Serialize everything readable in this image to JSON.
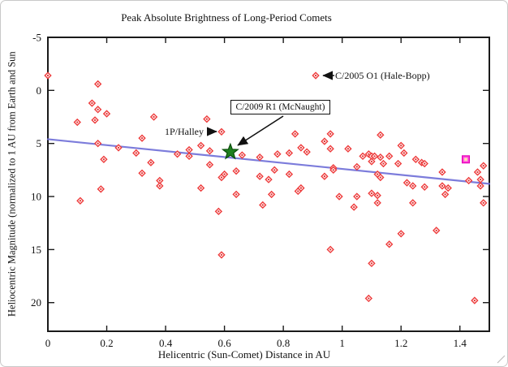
{
  "chart_data": {
    "type": "scatter",
    "title": "Peak Absolute Brightness of Long-Period Comets",
    "xlabel": "Helicentric (Sun-Comet) Distance in AU",
    "ylabel": "Heliocentric Magnitude (normalized to 1 AU from Earth and Sun",
    "xlim": [
      0,
      1.5
    ],
    "ylim": [
      -5,
      22.7
    ],
    "y_axis_note": "magnitude axis increases downward (brighter at top)",
    "grid": false,
    "xtick_values": [
      0,
      0.2,
      0.4,
      0.6,
      0.8,
      1,
      1.2,
      1.4
    ],
    "xtick_labels": [
      "0",
      "0.2",
      "0.4",
      "0.6",
      "0.8",
      "1",
      "1.2",
      "1.4"
    ],
    "ytick_values": [
      -5,
      0,
      5,
      10,
      15,
      20
    ],
    "ytick_labels": [
      "-5",
      "0",
      "5",
      "10",
      "15",
      "20"
    ],
    "series": [
      {
        "name": "Long-period comets",
        "marker": "open-diamond",
        "color": "#ee3b3b",
        "points": [
          [
            0.0,
            -1.4
          ],
          [
            0.17,
            -0.6
          ],
          [
            0.15,
            1.2
          ],
          [
            0.17,
            1.8
          ],
          [
            0.2,
            2.2
          ],
          [
            0.16,
            2.8
          ],
          [
            0.1,
            3.0
          ],
          [
            0.36,
            2.5
          ],
          [
            0.32,
            4.5
          ],
          [
            0.17,
            5.0
          ],
          [
            0.24,
            5.4
          ],
          [
            0.3,
            5.9
          ],
          [
            0.19,
            6.5
          ],
          [
            0.35,
            6.8
          ],
          [
            0.32,
            7.8
          ],
          [
            0.38,
            8.5
          ],
          [
            0.18,
            9.3
          ],
          [
            0.11,
            10.4
          ],
          [
            0.38,
            9.0
          ],
          [
            0.54,
            2.7
          ],
          [
            0.52,
            5.2
          ],
          [
            0.44,
            6.0
          ],
          [
            0.48,
            5.6
          ],
          [
            0.48,
            6.2
          ],
          [
            0.55,
            5.7
          ],
          [
            0.55,
            7.0
          ],
          [
            0.66,
            6.1
          ],
          [
            0.72,
            6.3
          ],
          [
            0.78,
            6.0
          ],
          [
            0.82,
            5.9
          ],
          [
            0.84,
            4.1
          ],
          [
            0.86,
            5.4
          ],
          [
            0.88,
            5.8
          ],
          [
            0.6,
            7.9
          ],
          [
            0.59,
            8.2
          ],
          [
            0.64,
            7.6
          ],
          [
            0.72,
            8.1
          ],
          [
            0.75,
            8.4
          ],
          [
            0.77,
            7.5
          ],
          [
            0.82,
            7.9
          ],
          [
            0.52,
            9.2
          ],
          [
            0.64,
            9.8
          ],
          [
            0.58,
            11.4
          ],
          [
            0.73,
            10.8
          ],
          [
            0.76,
            9.8
          ],
          [
            0.59,
            15.5
          ],
          [
            0.96,
            4.1
          ],
          [
            0.94,
            4.8
          ],
          [
            0.96,
            5.5
          ],
          [
            1.02,
            5.5
          ],
          [
            1.13,
            4.2
          ],
          [
            1.07,
            6.2
          ],
          [
            1.09,
            6.0
          ],
          [
            1.1,
            6.2
          ],
          [
            1.11,
            6.2
          ],
          [
            1.13,
            6.3
          ],
          [
            1.16,
            6.2
          ],
          [
            1.1,
            6.7
          ],
          [
            1.14,
            6.9
          ],
          [
            1.2,
            5.2
          ],
          [
            1.21,
            5.9
          ],
          [
            1.19,
            6.9
          ],
          [
            1.25,
            6.5
          ],
          [
            1.27,
            6.8
          ],
          [
            0.97,
            7.3
          ],
          [
            0.97,
            7.5
          ],
          [
            0.94,
            8.1
          ],
          [
            1.05,
            7.2
          ],
          [
            1.12,
            7.9
          ],
          [
            1.13,
            8.2
          ],
          [
            1.22,
            8.7
          ],
          [
            1.34,
            7.7
          ],
          [
            0.85,
            9.5
          ],
          [
            0.86,
            9.2
          ],
          [
            0.99,
            10.0
          ],
          [
            1.05,
            10.0
          ],
          [
            1.04,
            11.0
          ],
          [
            1.1,
            9.7
          ],
          [
            1.12,
            9.9
          ],
          [
            1.12,
            10.6
          ],
          [
            0.96,
            15.0
          ],
          [
            1.16,
            14.5
          ],
          [
            1.1,
            16.3
          ],
          [
            1.09,
            19.6
          ],
          [
            1.24,
            9.0
          ],
          [
            1.28,
            9.1
          ],
          [
            1.34,
            9.0
          ],
          [
            1.36,
            9.2
          ],
          [
            1.35,
            9.8
          ],
          [
            1.24,
            10.6
          ],
          [
            1.32,
            13.2
          ],
          [
            1.2,
            13.5
          ],
          [
            1.45,
            19.8
          ],
          [
            1.46,
            7.7
          ],
          [
            1.48,
            7.1
          ],
          [
            1.43,
            8.5
          ],
          [
            1.47,
            8.4
          ],
          [
            1.47,
            9.0
          ],
          [
            1.48,
            10.6
          ],
          [
            1.28,
            6.9
          ]
        ]
      }
    ],
    "trend_line": {
      "x": [
        0,
        1.5
      ],
      "y": [
        4.6,
        8.8
      ],
      "color": "#6e6ed8"
    },
    "special_points": {
      "halley": {
        "label": "1P/Halley",
        "x": 0.59,
        "y": 3.9,
        "marker": "open-diamond",
        "color": "#ee3b3b"
      },
      "hale_bopp": {
        "label": "C/2005 O1 (Hale-Bopp)",
        "x": 0.91,
        "y": -1.4,
        "marker": "open-diamond",
        "color": "#ee3b3b"
      },
      "mcnaught": {
        "label": "C/2009 R1 (McNaught)",
        "x": 0.62,
        "y": 5.8,
        "marker": "filled-star",
        "color": "#1e7f1e"
      },
      "unlabeled_magenta": {
        "x": 1.42,
        "y": 6.5,
        "marker": "filled-square",
        "color": "#ff2fd2"
      }
    },
    "colors": {
      "marker": "#ee3b3b",
      "marker_dot": "#e03535",
      "trend": "#6e6ed8",
      "star_fill": "#1e7f1e",
      "star_stroke": "#0a4d0a",
      "magenta": "#ff2fd2",
      "axis": "#1a1a1a"
    }
  }
}
